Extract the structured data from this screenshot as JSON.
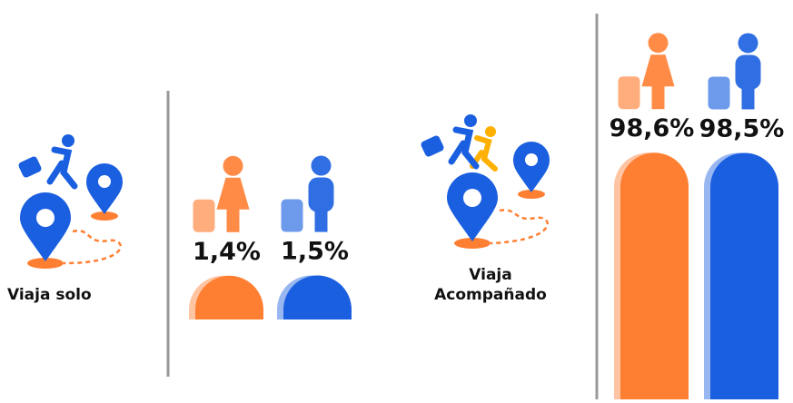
{
  "chart_data": {
    "type": "bar",
    "categories": [
      "Viaja solo",
      "Viaja Acompañado"
    ],
    "series": [
      {
        "color": "#ff7f32",
        "values": [
          1.4,
          98.6
        ],
        "value_labels": [
          "1,4%",
          "98,6%"
        ]
      },
      {
        "color": "#1a5fe0",
        "values": [
          1.5,
          98.5
        ],
        "value_labels": [
          "1,5%",
          "98,5%"
        ]
      }
    ]
  }
}
